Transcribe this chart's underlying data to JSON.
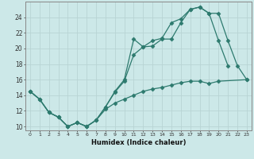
{
  "xlabel": "Humidex (Indice chaleur)",
  "background_color": "#cce8e8",
  "grid_color": "#b8d4d4",
  "line_color": "#2d7a6e",
  "xlim": [
    -0.5,
    23.5
  ],
  "ylim": [
    9.5,
    26.0
  ],
  "yticks": [
    10,
    12,
    14,
    16,
    18,
    20,
    22,
    24
  ],
  "xticks": [
    0,
    1,
    2,
    3,
    4,
    5,
    6,
    7,
    8,
    9,
    10,
    11,
    12,
    13,
    14,
    15,
    16,
    17,
    18,
    19,
    20,
    21,
    22,
    23
  ],
  "line1_x": [
    0,
    1,
    2,
    3,
    4,
    5,
    6,
    7,
    8,
    9,
    10,
    11,
    12,
    13,
    14,
    15,
    16,
    17,
    18,
    19,
    20,
    21
  ],
  "line1_y": [
    14.5,
    13.5,
    11.8,
    11.2,
    10.0,
    10.5,
    10.0,
    10.8,
    12.5,
    14.5,
    16.0,
    21.2,
    20.2,
    21.0,
    21.3,
    23.3,
    23.8,
    25.0,
    25.3,
    24.5,
    21.0,
    17.8
  ],
  "line2_x": [
    0,
    1,
    2,
    3,
    4,
    5,
    6,
    7,
    8,
    9,
    10,
    11,
    12,
    13,
    14,
    15,
    16,
    17,
    18,
    19,
    20,
    21,
    22,
    23
  ],
  "line2_y": [
    14.5,
    13.5,
    11.8,
    11.2,
    10.0,
    10.5,
    10.0,
    10.8,
    12.5,
    14.4,
    15.8,
    19.2,
    20.2,
    20.3,
    21.2,
    21.2,
    23.3,
    25.0,
    25.3,
    24.5,
    24.5,
    21.0,
    17.8,
    16.0
  ],
  "line3_x": [
    0,
    1,
    2,
    3,
    4,
    5,
    6,
    7,
    8,
    9,
    10,
    11,
    12,
    13,
    14,
    15,
    16,
    17,
    18,
    19,
    20,
    23
  ],
  "line3_y": [
    14.5,
    13.5,
    11.8,
    11.2,
    10.0,
    10.5,
    10.0,
    10.8,
    12.2,
    13.0,
    13.5,
    14.0,
    14.5,
    14.8,
    15.0,
    15.3,
    15.6,
    15.8,
    15.8,
    15.5,
    15.8,
    16.0
  ]
}
